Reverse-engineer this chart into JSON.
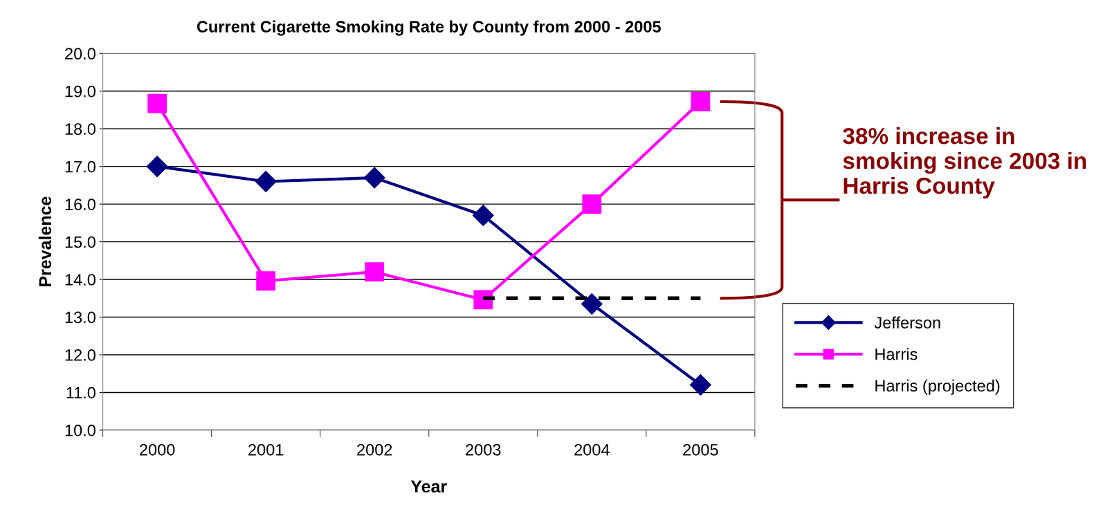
{
  "chart_data": {
    "type": "line",
    "title": "Current Cigarette Smoking Rate by County from 2000 - 2005",
    "xlabel": "Year",
    "ylabel": "Prevalence",
    "categories": [
      "2000",
      "2001",
      "2002",
      "2003",
      "2004",
      "2005"
    ],
    "series": [
      {
        "name": "Jefferson",
        "color": "#000080",
        "marker": "diamond",
        "line_style": "solid",
        "values": [
          17.0,
          16.6,
          16.7,
          15.7,
          13.35,
          11.2
        ]
      },
      {
        "name": "Harris",
        "color": "#ff00ff",
        "marker": "square",
        "line_style": "solid",
        "values": [
          18.67,
          13.96,
          14.2,
          13.46,
          16.0,
          18.72
        ]
      },
      {
        "name": "Harris (projected)",
        "color": "#000000",
        "marker": "none",
        "line_style": "dashed",
        "values": [
          null,
          null,
          null,
          13.5,
          13.5,
          13.5
        ]
      }
    ],
    "ylim": [
      10,
      20
    ],
    "yticks": [
      {
        "value": 10,
        "label": "10.0"
      },
      {
        "value": 11,
        "label": "11.0"
      },
      {
        "value": 12,
        "label": "12.0"
      },
      {
        "value": 13,
        "label": "13.0"
      },
      {
        "value": 14,
        "label": "14.0"
      },
      {
        "value": 15,
        "label": "15.0"
      },
      {
        "value": 16,
        "label": "16.0"
      },
      {
        "value": 17,
        "label": "17.0"
      },
      {
        "value": 18,
        "label": "18.0"
      },
      {
        "value": 19,
        "label": "19.0"
      },
      {
        "value": 20,
        "label": "20.0"
      }
    ],
    "grid": "y",
    "legend": "right",
    "annotations": [
      "38% increase in smoking since 2003 in Harris County"
    ]
  }
}
